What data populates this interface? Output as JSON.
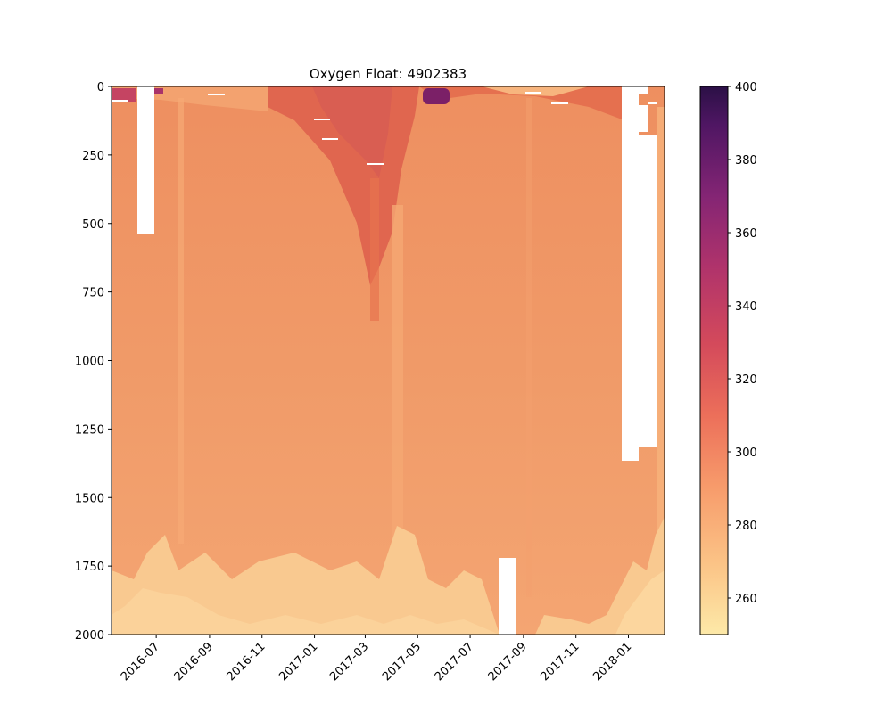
{
  "chart_data": {
    "type": "heatmap",
    "title": "Oxygen Float: 4902383",
    "xlabel": "",
    "ylabel": "",
    "x_range": [
      "2016-05-10",
      "2018-02-12"
    ],
    "y_range": [
      0,
      2000
    ],
    "y_inverted": true,
    "x_tick_labels": [
      "2016-07",
      "2016-09",
      "2016-11",
      "2017-01",
      "2017-03",
      "2017-05",
      "2017-07",
      "2017-09",
      "2017-11",
      "2018-01"
    ],
    "x_tick_dates": [
      "2016-07-01",
      "2016-09-01",
      "2016-11-01",
      "2017-01-01",
      "2017-03-01",
      "2017-05-01",
      "2017-07-01",
      "2017-09-01",
      "2017-11-01",
      "2018-01-01"
    ],
    "y_tick_labels": [
      "0",
      "250",
      "500",
      "750",
      "1000",
      "1250",
      "1500",
      "1750",
      "2000"
    ],
    "y_tick_values": [
      0,
      250,
      500,
      750,
      1000,
      1250,
      1500,
      1750,
      2000
    ],
    "colorbar": {
      "colormap": "magma_r",
      "range": [
        250,
        400
      ],
      "tick_labels": [
        "260",
        "280",
        "300",
        "320",
        "340",
        "360",
        "380",
        "400"
      ],
      "tick_values": [
        260,
        280,
        300,
        320,
        340,
        360,
        380,
        400
      ]
    },
    "grid": false,
    "colors": {
      "low": "#fcdfa0",
      "mid_low": "#f7a774",
      "mid": "#ef8a5c",
      "mid_high": "#e15d58",
      "high": "#b0336b",
      "top": "#2b1046"
    }
  }
}
